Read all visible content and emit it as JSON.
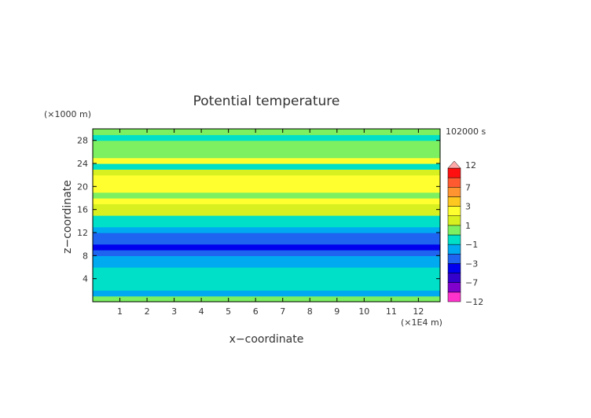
{
  "chart_data": {
    "type": "heatmap",
    "title": "Potential temperature",
    "xlabel": "x−coordinate",
    "ylabel": "z−coordinate",
    "x_unit": "(×1E4 m)",
    "y_unit": "(×1000 m)",
    "time_label": "102000 s",
    "xlim": [
      0,
      12.8
    ],
    "ylim": [
      0,
      30
    ],
    "x_ticks": [
      "1",
      "2",
      "3",
      "4",
      "5",
      "6",
      "7",
      "8",
      "9",
      "10",
      "11",
      "12"
    ],
    "y_ticks": [
      "4",
      "8",
      "12",
      "16",
      "20",
      "24",
      "28"
    ],
    "colorbar": {
      "labels": [
        "12",
        "7",
        "3",
        "1",
        "−1",
        "−3",
        "−7",
        "−12"
      ],
      "levels": [
        -12,
        -9,
        -7,
        -5,
        -3,
        -2,
        -1,
        0,
        1,
        2,
        3,
        5,
        7,
        9,
        12
      ],
      "colors": [
        "#ff33cc",
        "#8000cc",
        "#3300cc",
        "#0000ee",
        "#1e64f0",
        "#00aaf0",
        "#00e0c8",
        "#7cf060",
        "#d8f020",
        "#ffff30",
        "#ffc820",
        "#ff9430",
        "#ff5a30",
        "#ff1010",
        "#ffaaaa"
      ]
    },
    "bands": [
      {
        "z": 0.5,
        "value": 0.5
      },
      {
        "z": 1.5,
        "value": -1.5
      },
      {
        "z": 2.5,
        "value": -0.5
      },
      {
        "z": 3.5,
        "value": -0.5
      },
      {
        "z": 4.5,
        "value": -0.5
      },
      {
        "z": 5.5,
        "value": -0.8
      },
      {
        "z": 6.5,
        "value": -1.5
      },
      {
        "z": 7.5,
        "value": -2.0
      },
      {
        "z": 8.5,
        "value": -2.8
      },
      {
        "z": 9.5,
        "value": -3.2
      },
      {
        "z": 10.5,
        "value": -2.7
      },
      {
        "z": 11.5,
        "value": -2.2
      },
      {
        "z": 12.5,
        "value": -1.5
      },
      {
        "z": 13.5,
        "value": -0.5
      },
      {
        "z": 14.5,
        "value": -0.5
      },
      {
        "z": 15.5,
        "value": 1.5
      },
      {
        "z": 16.5,
        "value": 1.8
      },
      {
        "z": 17.5,
        "value": 2.8
      },
      {
        "z": 18.5,
        "value": 0.5
      },
      {
        "z": 19.5,
        "value": 2.5
      },
      {
        "z": 20.5,
        "value": 2.8
      },
      {
        "z": 21.5,
        "value": 2.2
      },
      {
        "z": 22.5,
        "value": 1.5
      },
      {
        "z": 23.5,
        "value": -0.5
      },
      {
        "z": 24.5,
        "value": 2.5
      },
      {
        "z": 25.5,
        "value": 0.5
      },
      {
        "z": 26.5,
        "value": 0.5
      },
      {
        "z": 27.5,
        "value": 0.5
      },
      {
        "z": 28.5,
        "value": -0.5
      },
      {
        "z": 29.5,
        "value": 0.5
      }
    ]
  }
}
